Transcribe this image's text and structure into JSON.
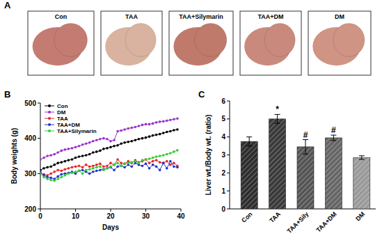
{
  "panel_labels": [
    "A",
    "B",
    "C"
  ],
  "photos": [
    {
      "label": "Con",
      "color": "#c47c72"
    },
    {
      "label": "TAA",
      "color": "#d9b3a0"
    },
    {
      "label": "TAA+Silymarin",
      "color": "#c07a6c"
    },
    {
      "label": "TAA+DM",
      "color": "#c98a7d"
    },
    {
      "label": "DM",
      "color": "#cf9484"
    }
  ],
  "chart_data": [
    {
      "type": "line",
      "xlabel": "Days",
      "ylabel": "Body weights (g)",
      "x": [
        0,
        1,
        2,
        3,
        4,
        5,
        6,
        7,
        8,
        9,
        10,
        11,
        12,
        13,
        14,
        15,
        16,
        17,
        18,
        19,
        20,
        21,
        22,
        23,
        24,
        25,
        26,
        27,
        28,
        29,
        30,
        31,
        32,
        33,
        34,
        35,
        36,
        37,
        38,
        39
      ],
      "xlim": [
        0,
        40
      ],
      "xticks": [
        0,
        10,
        20,
        30,
        40
      ],
      "ylim": [
        200,
        500
      ],
      "yticks": [
        200,
        300,
        400,
        500
      ],
      "legend": "upper left",
      "series": [
        {
          "name": "Con",
          "color": "#000000",
          "marker": "circle",
          "values": [
            310,
            315,
            318,
            320,
            325,
            330,
            332,
            335,
            338,
            340,
            345,
            348,
            350,
            352,
            355,
            360,
            362,
            365,
            370,
            372,
            375,
            378,
            380,
            385,
            388,
            390,
            392,
            395,
            398,
            400,
            402,
            405,
            408,
            410,
            412,
            415,
            418,
            420,
            423,
            425
          ]
        },
        {
          "name": "DM",
          "color": "#9933cc",
          "marker": "circle",
          "values": [
            340,
            345,
            350,
            352,
            355,
            360,
            365,
            368,
            370,
            372,
            375,
            378,
            382,
            385,
            388,
            392,
            395,
            398,
            400,
            398,
            392,
            395,
            420,
            422,
            425,
            428,
            430,
            432,
            435,
            438,
            440,
            440,
            442,
            445,
            447,
            448,
            450,
            452,
            454,
            456
          ]
        },
        {
          "name": "TAA",
          "color": "#e8262b",
          "marker": "circle",
          "values": [
            300,
            298,
            295,
            300,
            305,
            310,
            308,
            312,
            315,
            318,
            320,
            322,
            318,
            325,
            320,
            322,
            325,
            328,
            320,
            322,
            330,
            325,
            340,
            330,
            328,
            335,
            330,
            338,
            332,
            335,
            340,
            330,
            335,
            338,
            332,
            330,
            335,
            325,
            330,
            322
          ]
        },
        {
          "name": "TAA+DM",
          "color": "#2233cc",
          "marker": "circle",
          "values": [
            305,
            295,
            290,
            288,
            285,
            292,
            298,
            300,
            302,
            305,
            300,
            308,
            310,
            305,
            300,
            305,
            308,
            310,
            312,
            315,
            318,
            310,
            320,
            322,
            318,
            325,
            320,
            330,
            325,
            322,
            328,
            315,
            325,
            320,
            310,
            330,
            315,
            335,
            320,
            318
          ]
        },
        {
          "name": "TAA+Silymarin",
          "color": "#33cc33",
          "marker": "circle",
          "values": [
            300,
            290,
            285,
            282,
            280,
            285,
            290,
            295,
            300,
            302,
            305,
            308,
            300,
            310,
            312,
            315,
            318,
            320,
            310,
            315,
            320,
            325,
            330,
            322,
            328,
            330,
            332,
            335,
            330,
            338,
            340,
            342,
            345,
            348,
            350,
            352,
            355,
            358,
            362,
            366
          ]
        }
      ]
    },
    {
      "type": "bar",
      "ylabel": "Liver wt./Body wt. (ratio)",
      "categories": [
        "Con",
        "TAA",
        "TAA+Sily",
        "TAA+DM",
        "DM"
      ],
      "values": [
        3.75,
        5.0,
        3.45,
        3.95,
        2.85
      ],
      "errors": [
        0.25,
        0.25,
        0.4,
        0.15,
        0.1
      ],
      "colors": [
        "#2e2e2e",
        "#3a3a3a",
        "#555555",
        "#666666",
        "#9a9a9a"
      ],
      "ylim": [
        0,
        6
      ],
      "yticks": [
        0,
        1,
        2,
        3,
        4,
        5,
        6
      ],
      "annotations": [
        {
          "index": 1,
          "text": "*"
        },
        {
          "index": 2,
          "text": "#"
        },
        {
          "index": 3,
          "text": "#"
        }
      ]
    }
  ]
}
